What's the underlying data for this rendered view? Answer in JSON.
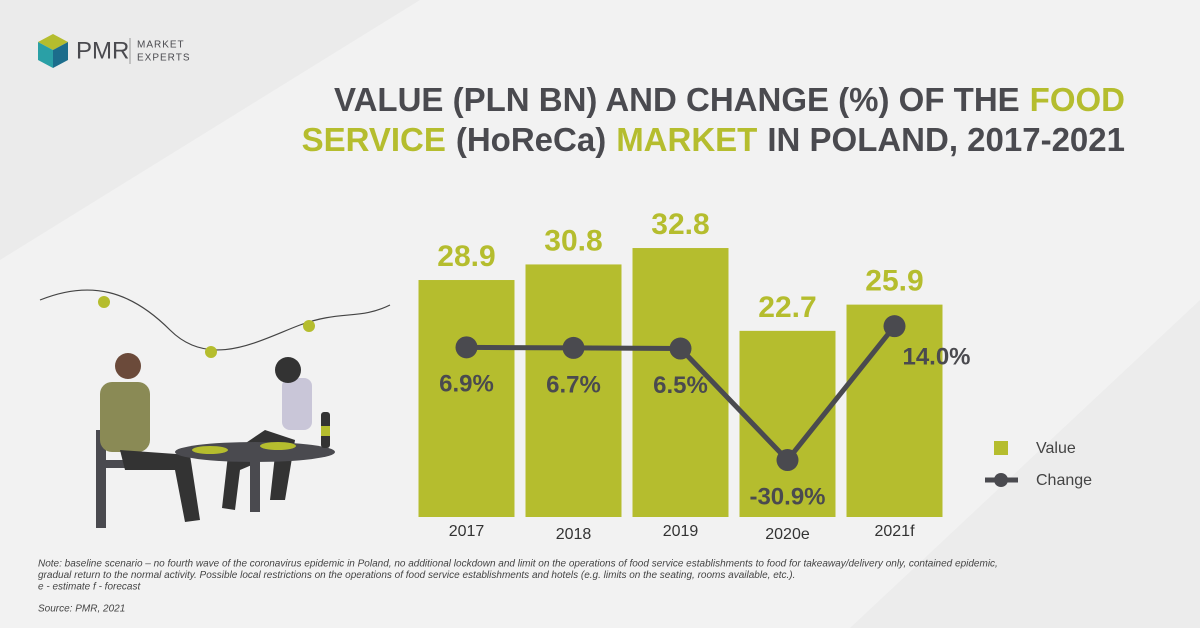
{
  "logo": {
    "brand": "PMR",
    "tagline": [
      "MARKET",
      "EXPERTS"
    ]
  },
  "chart_data": {
    "type": "bar",
    "title_segments": [
      [
        {
          "text": "VALUE (PLN BN) AND CHANGE (%) OF THE",
          "color": "#4a4a4f"
        },
        {
          "text": "FOOD",
          "color": "#b5bd2e"
        }
      ],
      [
        {
          "text": "SERVICE",
          "color": "#b5bd2e"
        },
        {
          "text": "(HoReCa)",
          "color": "#4a4a4f"
        },
        {
          "text": "MARKET",
          "color": "#b5bd2e"
        },
        {
          "text": "IN POLAND, 2017-2021",
          "color": "#4a4a4f"
        }
      ]
    ],
    "categories": [
      "2017",
      "2018",
      "2019",
      "2020e",
      "2021f"
    ],
    "series": [
      {
        "name": "Value",
        "color": "#b5bd2e",
        "values": [
          28.9,
          30.8,
          32.8,
          22.7,
          25.9
        ]
      },
      {
        "name": "Change",
        "color": "#4a4a4f",
        "axis": "y2",
        "values": [
          6.9,
          6.7,
          6.5,
          -30.9,
          14.0
        ],
        "value_labels": [
          "6.9%",
          "6.7%",
          "6.5%",
          "-30.9%",
          "14.0%"
        ]
      }
    ],
    "ylim": [
      0,
      40
    ],
    "y2lim": [
      -50,
      60
    ],
    "notes": [
      "Note: baseline scenario – no fourth wave of the coronavirus epidemic in Poland, no additional lockdown and limit on the operations of food service establishments to food for takeaway/delivery only, contained epidemic,",
      "gradual return to the normal activity. Possible local restrictions on the operations of food service establishments and hotels (e.g. limits on the seating, rooms available, etc.).",
      "e - estimate     f - forecast"
    ],
    "source": "Source: PMR, 2021"
  }
}
